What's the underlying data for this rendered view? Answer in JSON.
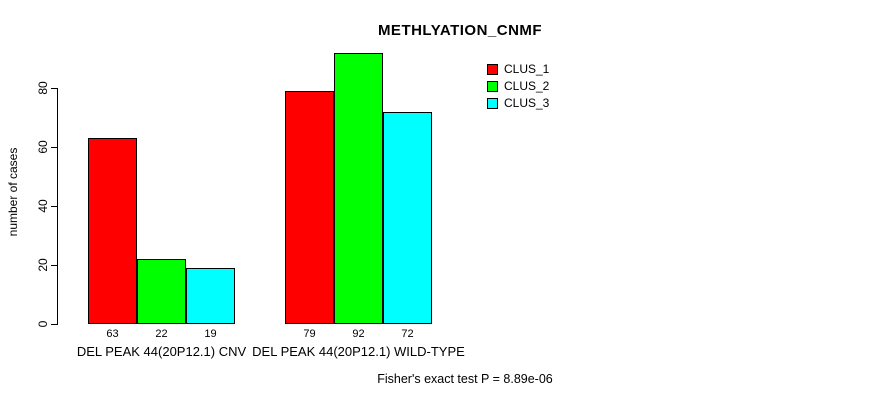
{
  "chart_data": {
    "type": "bar",
    "title": "METHLYATION_CNMF",
    "ylabel": "number of cases",
    "xlabel": "",
    "categories": [
      "DEL PEAK 44(20P12.1) CNV",
      "DEL PEAK 44(20P12.1) WILD-TYPE"
    ],
    "series": [
      {
        "name": "CLUS_1",
        "color": "#ff0000",
        "values": [
          63,
          79
        ]
      },
      {
        "name": "CLUS_2",
        "color": "#00ff00",
        "values": [
          22,
          92
        ]
      },
      {
        "name": "CLUS_3",
        "color": "#00ffff",
        "values": [
          19,
          72
        ]
      }
    ],
    "bar_value_labels": [
      [
        63,
        22,
        19
      ],
      [
        79,
        92,
        72
      ]
    ],
    "yticks": [
      0,
      20,
      40,
      60,
      80
    ],
    "ylim": [
      0,
      95
    ],
    "grid": false,
    "legend_position": "top-right",
    "annotation": "Fisher's exact test P = 8.89e-06"
  }
}
